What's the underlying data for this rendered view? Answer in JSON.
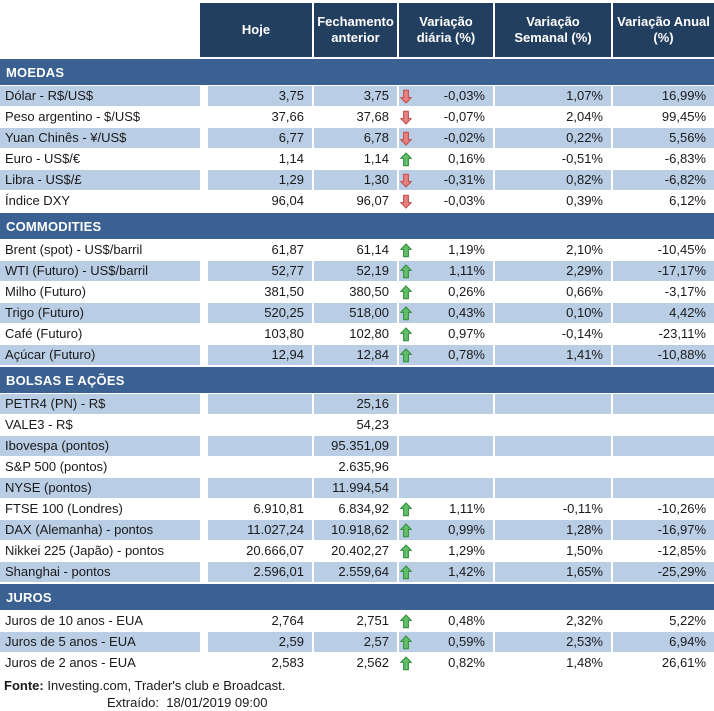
{
  "colors": {
    "header_bg": "#233F5F",
    "section_band_bg": "#3A6191",
    "row_shaded_bg": "#B9CDE5",
    "arrow_up": "#63BE6B",
    "arrow_down": "#E98080"
  },
  "table": {
    "columns": [
      "Hoje",
      "Fechamento anterior",
      "Variação diária (%)",
      "Variação Semanal (%)",
      "Variação Anual (%)"
    ],
    "sections": [
      {
        "title": "MOEDAS",
        "rows": [
          {
            "label": "Dólar - R$/US$",
            "hoje": "3,75",
            "fechamento": "3,75",
            "arrow": "down",
            "diaria": "-0,03%",
            "semanal": "1,07%",
            "anual": "16,99%",
            "shaded": true
          },
          {
            "label": "Peso argentino - $/US$",
            "hoje": "37,66",
            "fechamento": "37,68",
            "arrow": "down",
            "diaria": "-0,07%",
            "semanal": "2,04%",
            "anual": "99,45%",
            "shaded": false
          },
          {
            "label": "Yuan Chinês - ¥/US$",
            "hoje": "6,77",
            "fechamento": "6,78",
            "arrow": "down",
            "diaria": "-0,02%",
            "semanal": "0,22%",
            "anual": "5,56%",
            "shaded": true
          },
          {
            "label": "Euro - US$/€",
            "hoje": "1,14",
            "fechamento": "1,14",
            "arrow": "up",
            "diaria": "0,16%",
            "semanal": "-0,51%",
            "anual": "-6,83%",
            "shaded": false
          },
          {
            "label": "Libra - US$/£",
            "hoje": "1,29",
            "fechamento": "1,30",
            "arrow": "down",
            "diaria": "-0,31%",
            "semanal": "0,82%",
            "anual": "-6,82%",
            "shaded": true
          },
          {
            "label": "Índice DXY",
            "hoje": "96,04",
            "fechamento": "96,07",
            "arrow": "down",
            "diaria": "-0,03%",
            "semanal": "0,39%",
            "anual": "6,12%",
            "shaded": false
          }
        ]
      },
      {
        "title": "COMMODITIES",
        "rows": [
          {
            "label": "Brent (spot) - US$/barril",
            "hoje": "61,87",
            "fechamento": "61,14",
            "arrow": "up",
            "diaria": "1,19%",
            "semanal": "2,10%",
            "anual": "-10,45%",
            "shaded": false
          },
          {
            "label": "WTI (Futuro) - US$/barril",
            "hoje": "52,77",
            "fechamento": "52,19",
            "arrow": "up",
            "diaria": "1,11%",
            "semanal": "2,29%",
            "anual": "-17,17%",
            "shaded": true
          },
          {
            "label": "Milho (Futuro)",
            "hoje": "381,50",
            "fechamento": "380,50",
            "arrow": "up",
            "diaria": "0,26%",
            "semanal": "0,66%",
            "anual": "-3,17%",
            "shaded": false
          },
          {
            "label": "Trigo (Futuro)",
            "hoje": "520,25",
            "fechamento": "518,00",
            "arrow": "up",
            "diaria": "0,43%",
            "semanal": "0,10%",
            "anual": "4,42%",
            "shaded": true
          },
          {
            "label": "Café (Futuro)",
            "hoje": "103,80",
            "fechamento": "102,80",
            "arrow": "up",
            "diaria": "0,97%",
            "semanal": "-0,14%",
            "anual": "-23,11%",
            "shaded": false
          },
          {
            "label": "Açúcar (Futuro)",
            "hoje": "12,94",
            "fechamento": "12,84",
            "arrow": "up",
            "diaria": "0,78%",
            "semanal": "1,41%",
            "anual": "-10,88%",
            "shaded": true
          }
        ]
      },
      {
        "title": "BOLSAS E AÇÕES",
        "rows": [
          {
            "label": "PETR4 (PN) - R$",
            "hoje": "",
            "fechamento": "25,16",
            "arrow": "",
            "diaria": "",
            "semanal": "",
            "anual": "",
            "shaded": true
          },
          {
            "label": "VALE3 - R$",
            "hoje": "",
            "fechamento": "54,23",
            "arrow": "",
            "diaria": "",
            "semanal": "",
            "anual": "",
            "shaded": false
          },
          {
            "label": "Ibovespa (pontos)",
            "hoje": "",
            "fechamento": "95.351,09",
            "arrow": "",
            "diaria": "",
            "semanal": "",
            "anual": "",
            "shaded": true
          },
          {
            "label": "S&P 500 (pontos)",
            "hoje": "",
            "fechamento": "2.635,96",
            "arrow": "",
            "diaria": "",
            "semanal": "",
            "anual": "",
            "shaded": false
          },
          {
            "label": "NYSE (pontos)",
            "hoje": "",
            "fechamento": "11.994,54",
            "arrow": "",
            "diaria": "",
            "semanal": "",
            "anual": "",
            "shaded": true
          },
          {
            "label": "FTSE 100 (Londres)",
            "hoje": "6.910,81",
            "fechamento": "6.834,92",
            "arrow": "up",
            "diaria": "1,11%",
            "semanal": "-0,11%",
            "anual": "-10,26%",
            "shaded": false
          },
          {
            "label": "DAX (Alemanha) - pontos",
            "hoje": "11.027,24",
            "fechamento": "10.918,62",
            "arrow": "up",
            "diaria": "0,99%",
            "semanal": "1,28%",
            "anual": "-16,97%",
            "shaded": true
          },
          {
            "label": "Nikkei 225 (Japão) - pontos",
            "hoje": "20.666,07",
            "fechamento": "20.402,27",
            "arrow": "up",
            "diaria": "1,29%",
            "semanal": "1,50%",
            "anual": "-12,85%",
            "shaded": false
          },
          {
            "label": "Shanghai - pontos",
            "hoje": "2.596,01",
            "fechamento": "2.559,64",
            "arrow": "up",
            "diaria": "1,42%",
            "semanal": "1,65%",
            "anual": "-25,29%",
            "shaded": true
          }
        ]
      },
      {
        "title": "JUROS",
        "rows": [
          {
            "label": "Juros de 10 anos - EUA",
            "hoje": "2,764",
            "fechamento": "2,751",
            "arrow": "up",
            "diaria": "0,48%",
            "semanal": "2,32%",
            "anual": "5,22%",
            "shaded": false
          },
          {
            "label": "Juros de 5 anos - EUA",
            "hoje": "2,59",
            "fechamento": "2,57",
            "arrow": "up",
            "diaria": "0,59%",
            "semanal": "2,53%",
            "anual": "6,94%",
            "shaded": true
          },
          {
            "label": "Juros de 2 anos - EUA",
            "hoje": "2,583",
            "fechamento": "2,562",
            "arrow": "up",
            "diaria": "0,82%",
            "semanal": "1,48%",
            "anual": "26,61%",
            "shaded": false
          }
        ]
      }
    ]
  },
  "footer": {
    "fonte_label": "Fonte:",
    "fonte_text": " Investing.com, Trader's club e Broadcast.",
    "extraido_label": "Extraído:",
    "extraido_value": "  18/01/2019 09:00"
  }
}
